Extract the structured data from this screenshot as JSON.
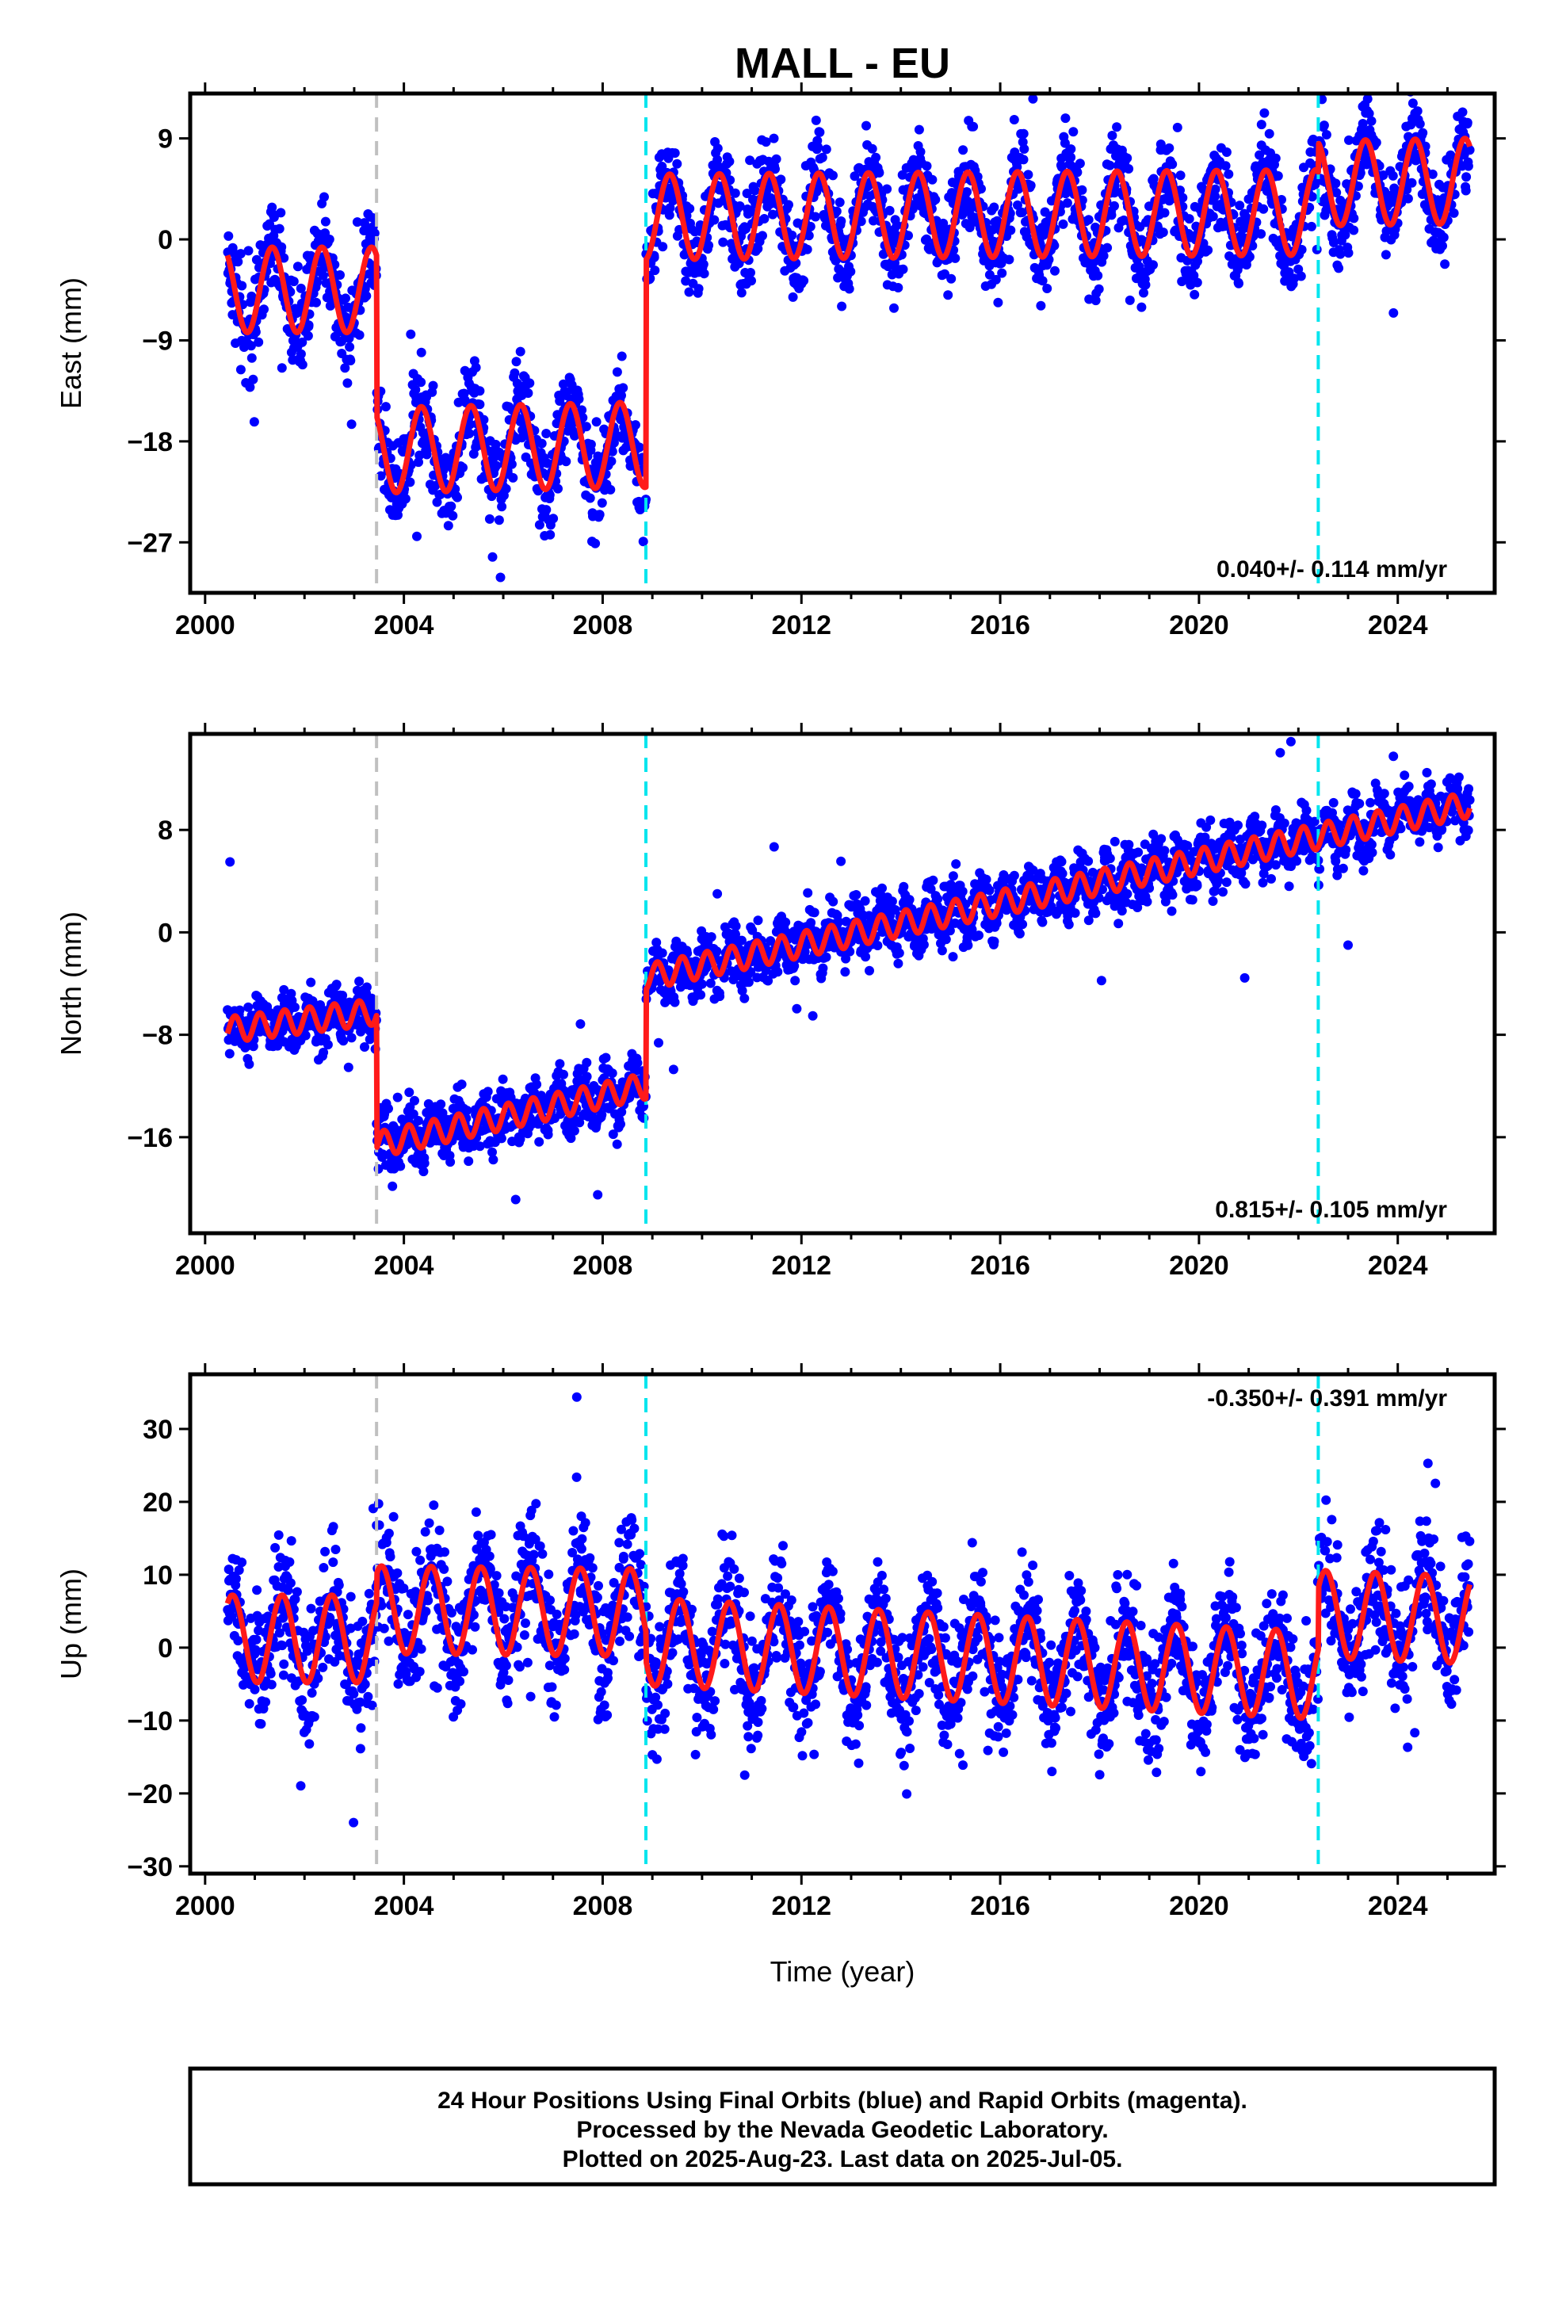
{
  "figure": {
    "title": "MALL - EU",
    "xlabel": "Time (year)",
    "footer_lines": [
      "24 Hour Positions Using Final Orbits (blue) and Rapid Orbits (magenta).",
      "Processed by the Nevada Geodetic Laboratory.",
      "Plotted on 2025-Aug-23. Last data on 2025-Jul-05."
    ],
    "colors": {
      "points": "#0000ff",
      "model": "#ff1a1a",
      "event_gray": "#c0c0c0",
      "event_cyan": "#00e5ee",
      "axis": "#000000"
    }
  },
  "chart_data": [
    {
      "type": "scatter",
      "panel": "east",
      "ylabel": "East (mm)",
      "rate_text": "0.040+/- 0.114 mm/yr",
      "rate_position": "bottom-right",
      "xlim": [
        1999.7,
        2025.95
      ],
      "ylim": [
        -31.5,
        13
      ],
      "xticks": [
        2000,
        2004,
        2008,
        2012,
        2016,
        2020,
        2024
      ],
      "yticks": [
        9,
        0,
        -9,
        -18,
        -27
      ],
      "grid": false,
      "events": [
        {
          "x": 2003.45,
          "color": "gray"
        },
        {
          "x": 2008.87,
          "color": "cyan"
        },
        {
          "x": 2022.4,
          "color": "cyan"
        }
      ],
      "model": {
        "x_start": 2000.45,
        "x_end": 2025.45,
        "segments": [
          {
            "from": 2000.45,
            "to": 2003.45,
            "offset_start": -4.5,
            "offset_end": -4.5,
            "amplitude": 3.8,
            "period_years": 1.0,
            "peak_phase": 0.35
          },
          {
            "from": 2003.45,
            "to": 2008.87,
            "offset_start": -18.8,
            "offset_end": -18.3,
            "amplitude": 3.8,
            "period_years": 1.0,
            "peak_phase": 0.35
          },
          {
            "from": 2008.87,
            "to": 2022.4,
            "offset_start": 2.0,
            "offset_end": 2.4,
            "amplitude": 3.8,
            "period_years": 1.0,
            "peak_phase": 0.35
          },
          {
            "from": 2022.4,
            "to": 2025.45,
            "offset_start": 5.0,
            "offset_end": 5.2,
            "amplitude": 3.8,
            "period_years": 1.0,
            "peak_phase": 0.35
          }
        ]
      },
      "scatter": {
        "count": 2600,
        "noise_mm": 2.1,
        "outlier_fraction": 0.01,
        "outlier_mm": 6
      }
    },
    {
      "type": "scatter",
      "panel": "north",
      "ylabel": "North (mm)",
      "rate_text": "0.815+/- 0.105 mm/yr",
      "rate_position": "bottom-right",
      "xlim": [
        1999.7,
        2025.95
      ],
      "ylim": [
        -23.5,
        15.5
      ],
      "xticks": [
        2000,
        2004,
        2008,
        2012,
        2016,
        2020,
        2024
      ],
      "yticks": [
        8,
        0,
        -8,
        -16
      ],
      "grid": false,
      "events": [
        {
          "x": 2003.45,
          "color": "gray"
        },
        {
          "x": 2008.87,
          "color": "cyan"
        },
        {
          "x": 2022.4,
          "color": "cyan"
        }
      ],
      "model": {
        "x_start": 2000.45,
        "x_end": 2025.45,
        "segments": [
          {
            "from": 2000.45,
            "to": 2003.45,
            "offset_start": -7.6,
            "offset_end": -6.2,
            "amplitude": 1.0,
            "period_years": 0.5,
            "peak_phase": 0.1
          },
          {
            "from": 2003.45,
            "to": 2008.87,
            "offset_start": -16.6,
            "offset_end": -12.0,
            "amplitude": 1.0,
            "period_years": 0.5,
            "peak_phase": 0.1
          },
          {
            "from": 2008.87,
            "to": 2022.4,
            "offset_start": -3.5,
            "offset_end": 7.5,
            "amplitude": 1.0,
            "period_years": 0.5,
            "peak_phase": 0.1
          },
          {
            "from": 2022.4,
            "to": 2025.45,
            "offset_start": 7.5,
            "offset_end": 10.0,
            "amplitude": 1.0,
            "period_years": 0.5,
            "peak_phase": 0.1
          }
        ]
      },
      "scatter": {
        "count": 2600,
        "noise_mm": 1.1,
        "outlier_fraction": 0.008,
        "outlier_mm": 5
      },
      "outliers": [
        {
          "x": 2000.5,
          "y": 5.5
        },
        {
          "x": 2015.05,
          "y": -1.9
        },
        {
          "x": 2007.9,
          "y": -20.5
        },
        {
          "x": 2021.85,
          "y": 14.9
        },
        {
          "x": 2023.0,
          "y": -1.0
        }
      ]
    },
    {
      "type": "scatter",
      "panel": "up",
      "ylabel": "Up (mm)",
      "rate_text": "-0.350+/- 0.391 mm/yr",
      "rate_position": "top-right",
      "xlim": [
        1999.7,
        2025.95
      ],
      "ylim": [
        -31,
        37.5
      ],
      "xticks": [
        2000,
        2004,
        2008,
        2012,
        2016,
        2020,
        2024
      ],
      "yticks": [
        30,
        20,
        10,
        0,
        -10,
        -20,
        -30
      ],
      "grid": false,
      "events": [
        {
          "x": 2003.45,
          "color": "gray"
        },
        {
          "x": 2008.87,
          "color": "cyan"
        },
        {
          "x": 2022.4,
          "color": "cyan"
        }
      ],
      "model": {
        "x_start": 2000.45,
        "x_end": 2025.45,
        "segments": [
          {
            "from": 2000.45,
            "to": 2003.45,
            "offset_start": 1.2,
            "offset_end": 1.2,
            "amplitude": 6.0,
            "period_years": 1.0,
            "peak_phase": 0.55
          },
          {
            "from": 2003.45,
            "to": 2008.87,
            "offset_start": 5.2,
            "offset_end": 4.8,
            "amplitude": 6.0,
            "period_years": 1.0,
            "peak_phase": 0.55
          },
          {
            "from": 2008.87,
            "to": 2022.4,
            "offset_start": 0.8,
            "offset_end": -3.8,
            "amplitude": 6.0,
            "period_years": 1.0,
            "peak_phase": 0.55
          },
          {
            "from": 2022.4,
            "to": 2025.45,
            "offset_start": 4.6,
            "offset_end": 3.8,
            "amplitude": 6.0,
            "period_years": 1.0,
            "peak_phase": 0.55
          }
        ]
      },
      "scatter": {
        "count": 2600,
        "noise_mm": 4.2,
        "outlier_fraction": 0.01,
        "outlier_mm": 12
      }
    }
  ]
}
